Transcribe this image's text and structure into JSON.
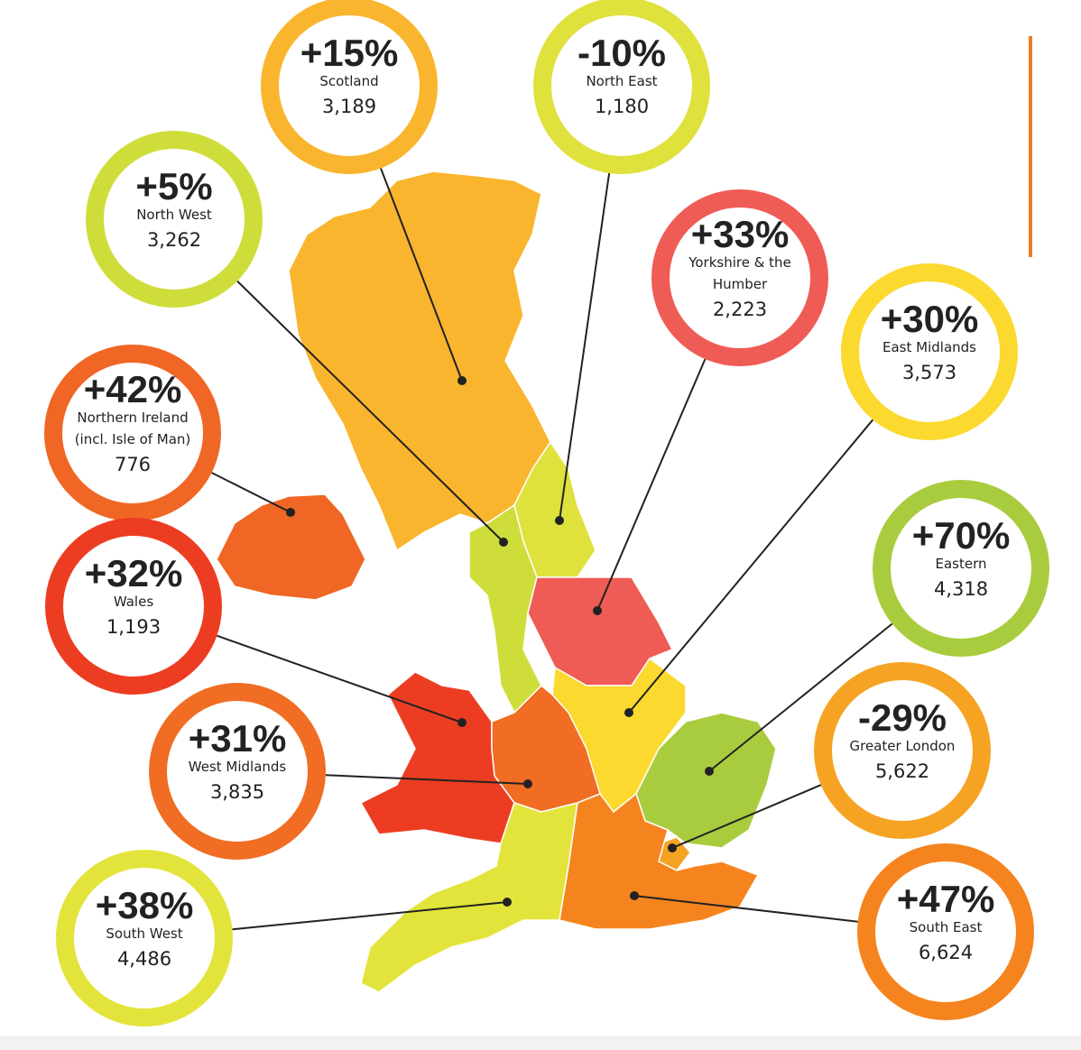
{
  "regions": [
    {
      "change": "+15%",
      "name": [
        "Scotland"
      ],
      "count": "3,189",
      "color": "#f9b52d"
    },
    {
      "change": "-10%",
      "name": [
        "North East"
      ],
      "count": "1,180",
      "color": "#dfe13c"
    },
    {
      "change": "+5%",
      "name": [
        "North West"
      ],
      "count": "3,262",
      "color": "#cfdd3b"
    },
    {
      "change": "+33%",
      "name": [
        "Yorkshire & the",
        "Humber"
      ],
      "count": "2,223",
      "color": "#ef5b55"
    },
    {
      "change": "+30%",
      "name": [
        "East Midlands"
      ],
      "count": "3,573",
      "color": "#fbd92e"
    },
    {
      "change": "+42%",
      "name": [
        "Northern Ireland",
        "(incl. Isle of Man)"
      ],
      "count": "776",
      "color": "#f06624"
    },
    {
      "change": "+70%",
      "name": [
        "Eastern"
      ],
      "count": "4,318",
      "color": "#a9cc3e"
    },
    {
      "change": "+32%",
      "name": [
        "Wales"
      ],
      "count": "1,193",
      "color": "#ec3d23"
    },
    {
      "change": "+31%",
      "name": [
        "West Midlands"
      ],
      "count": "3,835",
      "color": "#f06d23"
    },
    {
      "change": "-29%",
      "name": [
        "Greater London"
      ],
      "count": "5,622",
      "color": "#f6a323"
    },
    {
      "change": "+38%",
      "name": [
        "South West"
      ],
      "count": "4,486",
      "color": "#e3e43b"
    },
    {
      "change": "+47%",
      "name": [
        "South East"
      ],
      "count": "6,624",
      "color": "#f5841f"
    }
  ]
}
